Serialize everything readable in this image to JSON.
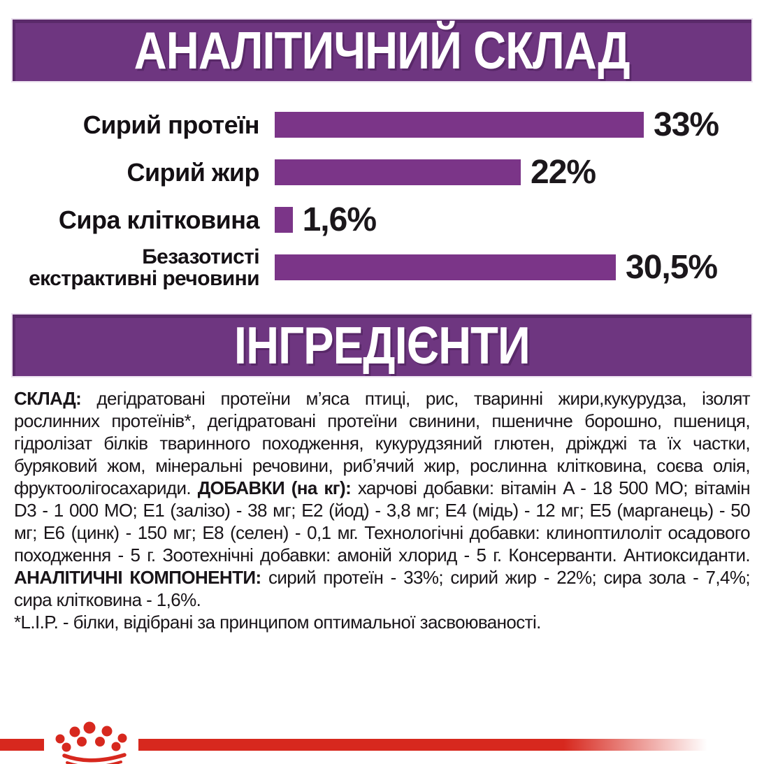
{
  "header_banner": {
    "label": "АНАЛІТИЧНИЙ СКЛАД"
  },
  "chart_data": {
    "type": "bar",
    "orientation": "horizontal",
    "title": "АНАЛІТИЧНИЙ СКЛАД",
    "unit": "%",
    "xlim": [
      0,
      33
    ],
    "bar_color": "#7B3588",
    "categories": [
      "Сирий протеїн",
      "Сирий жир",
      "Сира клітковина",
      "Безазотисті екстрактивні речовини"
    ],
    "values": [
      33,
      22,
      1.6,
      30.5
    ],
    "rows": [
      {
        "label_lines": [
          "Сирий протеїн"
        ],
        "value": 33,
        "value_label": "33%"
      },
      {
        "label_lines": [
          "Сирий жир"
        ],
        "value": 22,
        "value_label": "22%"
      },
      {
        "label_lines": [
          "Сира клітковина"
        ],
        "value": 1.6,
        "value_label": "1,6%"
      },
      {
        "label_lines": [
          "Безазотисті",
          "екстрактивні речовини"
        ],
        "value": 30.5,
        "value_label": "30,5%"
      }
    ]
  },
  "ingredients_banner": {
    "label": "ІНГРЕДІЄНТИ"
  },
  "composition": {
    "segments": [
      {
        "text": "СКЛАД:",
        "bold": true
      },
      {
        "text": " дегідратовані протеїни м’яса птиці, рис, тваринні жири,кукурудза, ізолят рослинних протеїнів*, дегідратовані протеїни свинини, пшеничне борошно, пшениця, гідролізат білків тваринного походження, кукурудзяний глютен, дріжджі та їх частки, буряковий жом, мінеральні речовини, риб’ячий жир, рослинна клітковина, соєва олія, фруктоолігосахариди. ",
        "bold": false
      },
      {
        "text": "ДОБАВКИ (на кг):",
        "bold": true
      },
      {
        "text": " харчові добавки: вітамін A - 18 500 МО; вітамін D3 - 1 000 МО; Е1 (залізо) - 38 мг; Е2 (йод) - 3,8 мг; Е4 (мідь) - 12 мг; Е5 (марганець) - 50 мг; Е6 (цинк) - 150 мг; Е8 (селен) - 0,1 мг. Технологічні добавки: клиноптилоліт осадового походження - 5 г. Зоотехнічні добавки: амоній хлорид - 5 г. Консерванти. Антиоксиданти. ",
        "bold": false
      },
      {
        "text": "АНАЛІТИЧНІ КОМПОНЕНТИ:",
        "bold": true
      },
      {
        "text": " сирий протеїн - 33%; сирий жир - 22%; сира зола - 7,4%; сира клітковина - 1,6%.",
        "bold": false
      }
    ],
    "footnote": "*L.I.P. - білки, відібрані за принципом оптимальної засвоюваності."
  },
  "colors": {
    "banner_purple": "#6E3680",
    "bar_purple": "#7B3588",
    "brand_red": "#D7281E",
    "text_black": "#1B171B"
  },
  "footer": {
    "logo": "royal-canin-crown"
  }
}
